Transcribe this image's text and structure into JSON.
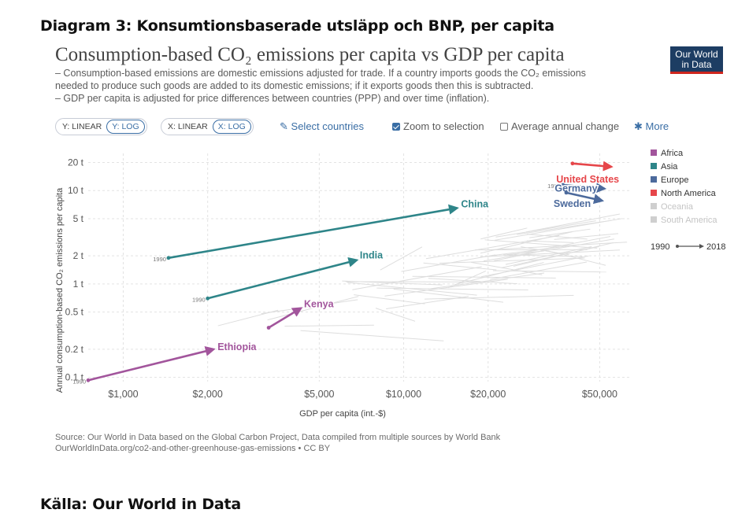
{
  "page": {
    "heading": "Diagram 3: Konsumtionsbaserade utsläpp och BNP, per capita",
    "footer": "Källa: Our World in Data"
  },
  "chart": {
    "title": "Consumption-based CO₂ emissions per capita vs GDP per capita",
    "subtitle_lines": [
      "– Consumption-based emissions are domestic emissions adjusted for trade. If a country imports goods the CO₂ emissions",
      "needed to produce such goods are added to its domestic emissions; if it exports goods then this is subtracted.",
      "– GDP per capita is adjusted for price differences between countries (PPP) and over time (inflation)."
    ],
    "logo_lines": [
      "Our World",
      "in Data"
    ],
    "controls": {
      "y_linear": "Y: LINEAR",
      "y_log": "Y: LOG",
      "x_linear": "X: LINEAR",
      "x_log": "X: LOG",
      "select_countries": "Select countries",
      "zoom_to_selection": "Zoom to selection",
      "average_annual_change": "Average annual change",
      "more": "More"
    },
    "source_lines": [
      "Source: Our World in Data based on the Global Carbon Project, Data compiled from multiple sources by World Bank",
      "OurWorldInData.org/co2-and-other-greenhouse-gas-emissions • CC BY"
    ],
    "colors": {
      "africa": "#a2559c",
      "asia": "#2e8589",
      "europe": "#4c6a9c",
      "north_america": "#e6464a",
      "oceania": "#cfcfcf",
      "south_america": "#cfcfcf",
      "background_lines": "#dddddd"
    }
  },
  "chart_data": {
    "type": "scatter",
    "title": "Consumption-based CO₂ emissions per capita vs GDP per capita",
    "xlabel": "GDP per capita (int.-$)",
    "ylabel": "Annual consumption-based CO₂ emissions per capita",
    "x_scale": "log",
    "y_scale": "log",
    "xlim": [
      750,
      65000
    ],
    "ylim": [
      0.09,
      25
    ],
    "x_ticks": [
      1000,
      2000,
      5000,
      10000,
      20000,
      50000
    ],
    "x_tick_labels": [
      "$1,000",
      "$2,000",
      "$5,000",
      "$10,000",
      "$20,000",
      "$50,000"
    ],
    "y_ticks": [
      0.1,
      0.2,
      0.5,
      1,
      2,
      5,
      10,
      20
    ],
    "y_tick_labels": [
      "0.1 t",
      "0.2 t",
      "0.5 t",
      "1 t",
      "2 t",
      "5 t",
      "10 t",
      "20 t"
    ],
    "grid": true,
    "legend_position": "right",
    "legend": [
      {
        "name": "Africa",
        "color": "#a2559c",
        "faded": false
      },
      {
        "name": "Asia",
        "color": "#2e8589",
        "faded": false
      },
      {
        "name": "Europe",
        "color": "#4c6a9c",
        "faded": false
      },
      {
        "name": "North America",
        "color": "#e6464a",
        "faded": false
      },
      {
        "name": "Oceania",
        "color": "#cfcfcf",
        "faded": true
      },
      {
        "name": "South America",
        "color": "#cfcfcf",
        "faded": true
      }
    ],
    "time_legend": {
      "start": "1990",
      "end": "2018"
    },
    "series": [
      {
        "name": "United States",
        "region": "north_america",
        "start": {
          "x": 40000,
          "y": 19.5
        },
        "end": {
          "x": 55000,
          "y": 18.0
        },
        "label_side": "left",
        "start_label": ""
      },
      {
        "name": "Germany",
        "region": "europe",
        "start": {
          "x": 37000,
          "y": 11.5
        },
        "end": {
          "x": 52000,
          "y": 10.5
        },
        "label_side": "left",
        "start_label": "1990"
      },
      {
        "name": "Sweden",
        "region": "europe",
        "start": {
          "x": 38000,
          "y": 9.5
        },
        "end": {
          "x": 51000,
          "y": 7.8
        },
        "label_side": "left",
        "start_label": ""
      },
      {
        "name": "China",
        "region": "asia",
        "start": {
          "x": 1450,
          "y": 1.9
        },
        "end": {
          "x": 15500,
          "y": 6.5
        },
        "label_side": "right",
        "start_label": "1990"
      },
      {
        "name": "India",
        "region": "asia",
        "start": {
          "x": 2000,
          "y": 0.7
        },
        "end": {
          "x": 6800,
          "y": 1.8
        },
        "label_side": "right",
        "start_label": "1990"
      },
      {
        "name": "Kenya",
        "region": "africa",
        "start": {
          "x": 3300,
          "y": 0.34
        },
        "end": {
          "x": 4300,
          "y": 0.55
        },
        "label_side": "right",
        "start_label": ""
      },
      {
        "name": "Ethiopia",
        "region": "africa",
        "start": {
          "x": 750,
          "y": 0.093
        },
        "end": {
          "x": 2100,
          "y": 0.2
        },
        "label_side": "right",
        "start_label": "1990"
      }
    ]
  }
}
